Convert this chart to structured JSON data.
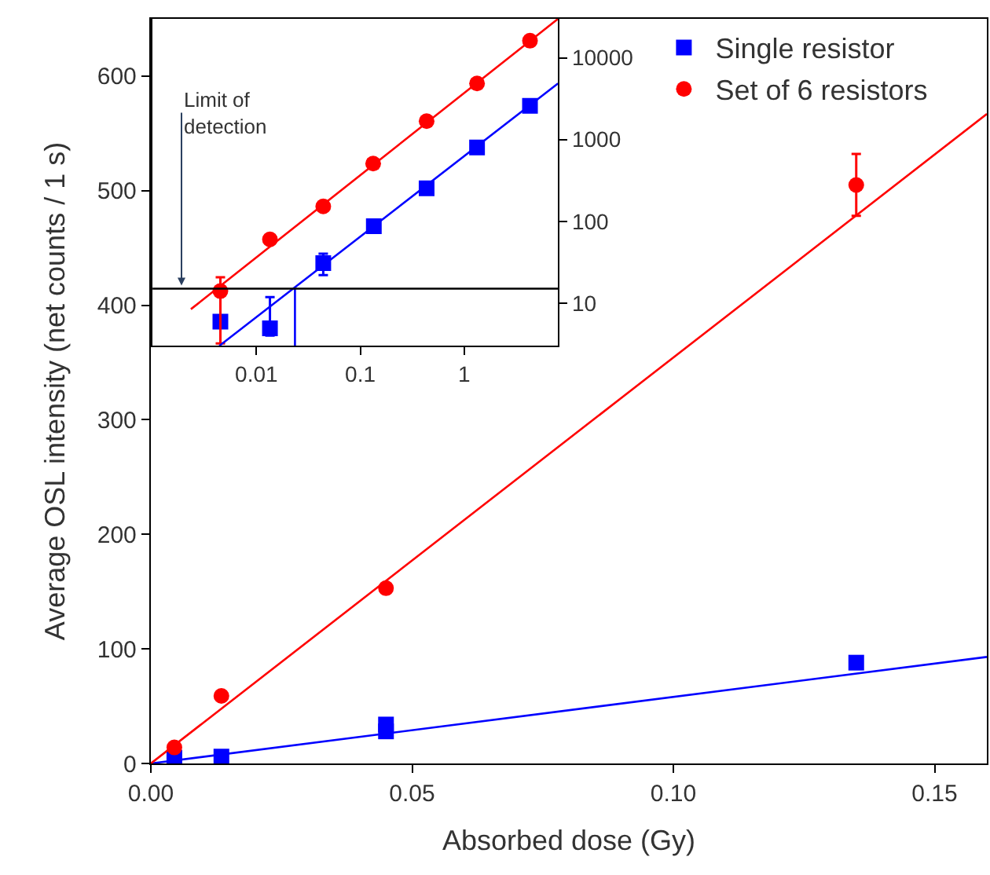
{
  "chart_data": [
    {
      "type": "scatter",
      "xlabel": "Absorbed dose (Gy)",
      "ylabel": "Average OSL intensity (net counts / 1 s)",
      "xlim": [
        0,
        0.16
      ],
      "ylim": [
        0,
        650
      ],
      "xticks": [
        {
          "value": 0,
          "label": "0.00"
        },
        {
          "value": 0.05,
          "label": "0.05"
        },
        {
          "value": 0.1,
          "label": "0.10"
        },
        {
          "value": 0.15,
          "label": "0.15"
        }
      ],
      "yticks": [
        0,
        100,
        200,
        300,
        400,
        500,
        600
      ],
      "legend": "top right",
      "series": [
        {
          "name": "Single resistor",
          "color": "#0000ff",
          "marker": "square",
          "x": [
            0.0045,
            0.0135,
            0.045,
            0.045,
            0.135
          ],
          "values": [
            5,
            6,
            28,
            34,
            88
          ]
        },
        {
          "name": "Set of 6 resistors",
          "color": "#ff0000",
          "marker": "circle",
          "x": [
            0.0045,
            0.0135,
            0.045,
            0.135
          ],
          "values": [
            14,
            59,
            153,
            505
          ],
          "errors": [
            null,
            null,
            null,
            27
          ]
        },
        {
          "type": "line",
          "color": "#0000ff",
          "marker": "none",
          "x": [
            0,
            0.16
          ],
          "values": [
            0,
            93
          ]
        },
        {
          "type": "line",
          "color": "#ff0000",
          "marker": "none",
          "x": [
            0,
            0.16
          ],
          "values": [
            0,
            567
          ]
        }
      ]
    },
    {
      "type": "scatter",
      "log": "xy",
      "xlim": [
        0.001,
        8
      ],
      "ylim": [
        3,
        30000
      ],
      "xticks": [
        0.01,
        0.1,
        1
      ],
      "yticks": [
        10,
        100,
        1000,
        10000
      ],
      "ref_lines": [
        {
          "axis": "y",
          "value": 15,
          "color": "#000000"
        }
      ],
      "annotations": [
        {
          "text": "Limit of\ndetection",
          "x": 0.0019,
          "y": 15
        }
      ],
      "series": [
        {
          "color": "#0000ff",
          "marker": "square",
          "x": [
            0.0045,
            0.0135,
            0.044,
            0.135,
            0.435,
            1.33,
            4.3
          ],
          "values": [
            5.9,
            4.9,
            30.7,
            87,
            253,
            800,
            2590
          ],
          "errors": [
            null,
            [
              4,
              11.8
            ],
            [
              22,
              40
            ],
            null,
            null,
            null,
            null
          ]
        },
        {
          "color": "#ff0000",
          "marker": "circle",
          "x": [
            0.0045,
            0.0135,
            0.044,
            0.133,
            0.435,
            1.33,
            4.3
          ],
          "values": [
            14,
            60,
            152,
            508,
            1680,
            4860,
            16200
          ],
          "errors": [
            [
              3.2,
              20.6
            ],
            null,
            null,
            null,
            null,
            null,
            null
          ]
        },
        {
          "type": "line",
          "color": "#ff0000",
          "marker": "none",
          "x": [
            0.00234,
            8
          ],
          "values": [
            8.4,
            30000
          ]
        },
        {
          "type": "line",
          "color": "#0000ff",
          "marker": "none",
          "x": [
            0.0044,
            8
          ],
          "values": [
            3,
            4860
          ]
        },
        {
          "type": "line",
          "color": "#0000ff",
          "marker": "none",
          "x": [
            0.0235,
            0.0235
          ],
          "values": [
            15,
            3
          ]
        }
      ]
    }
  ]
}
